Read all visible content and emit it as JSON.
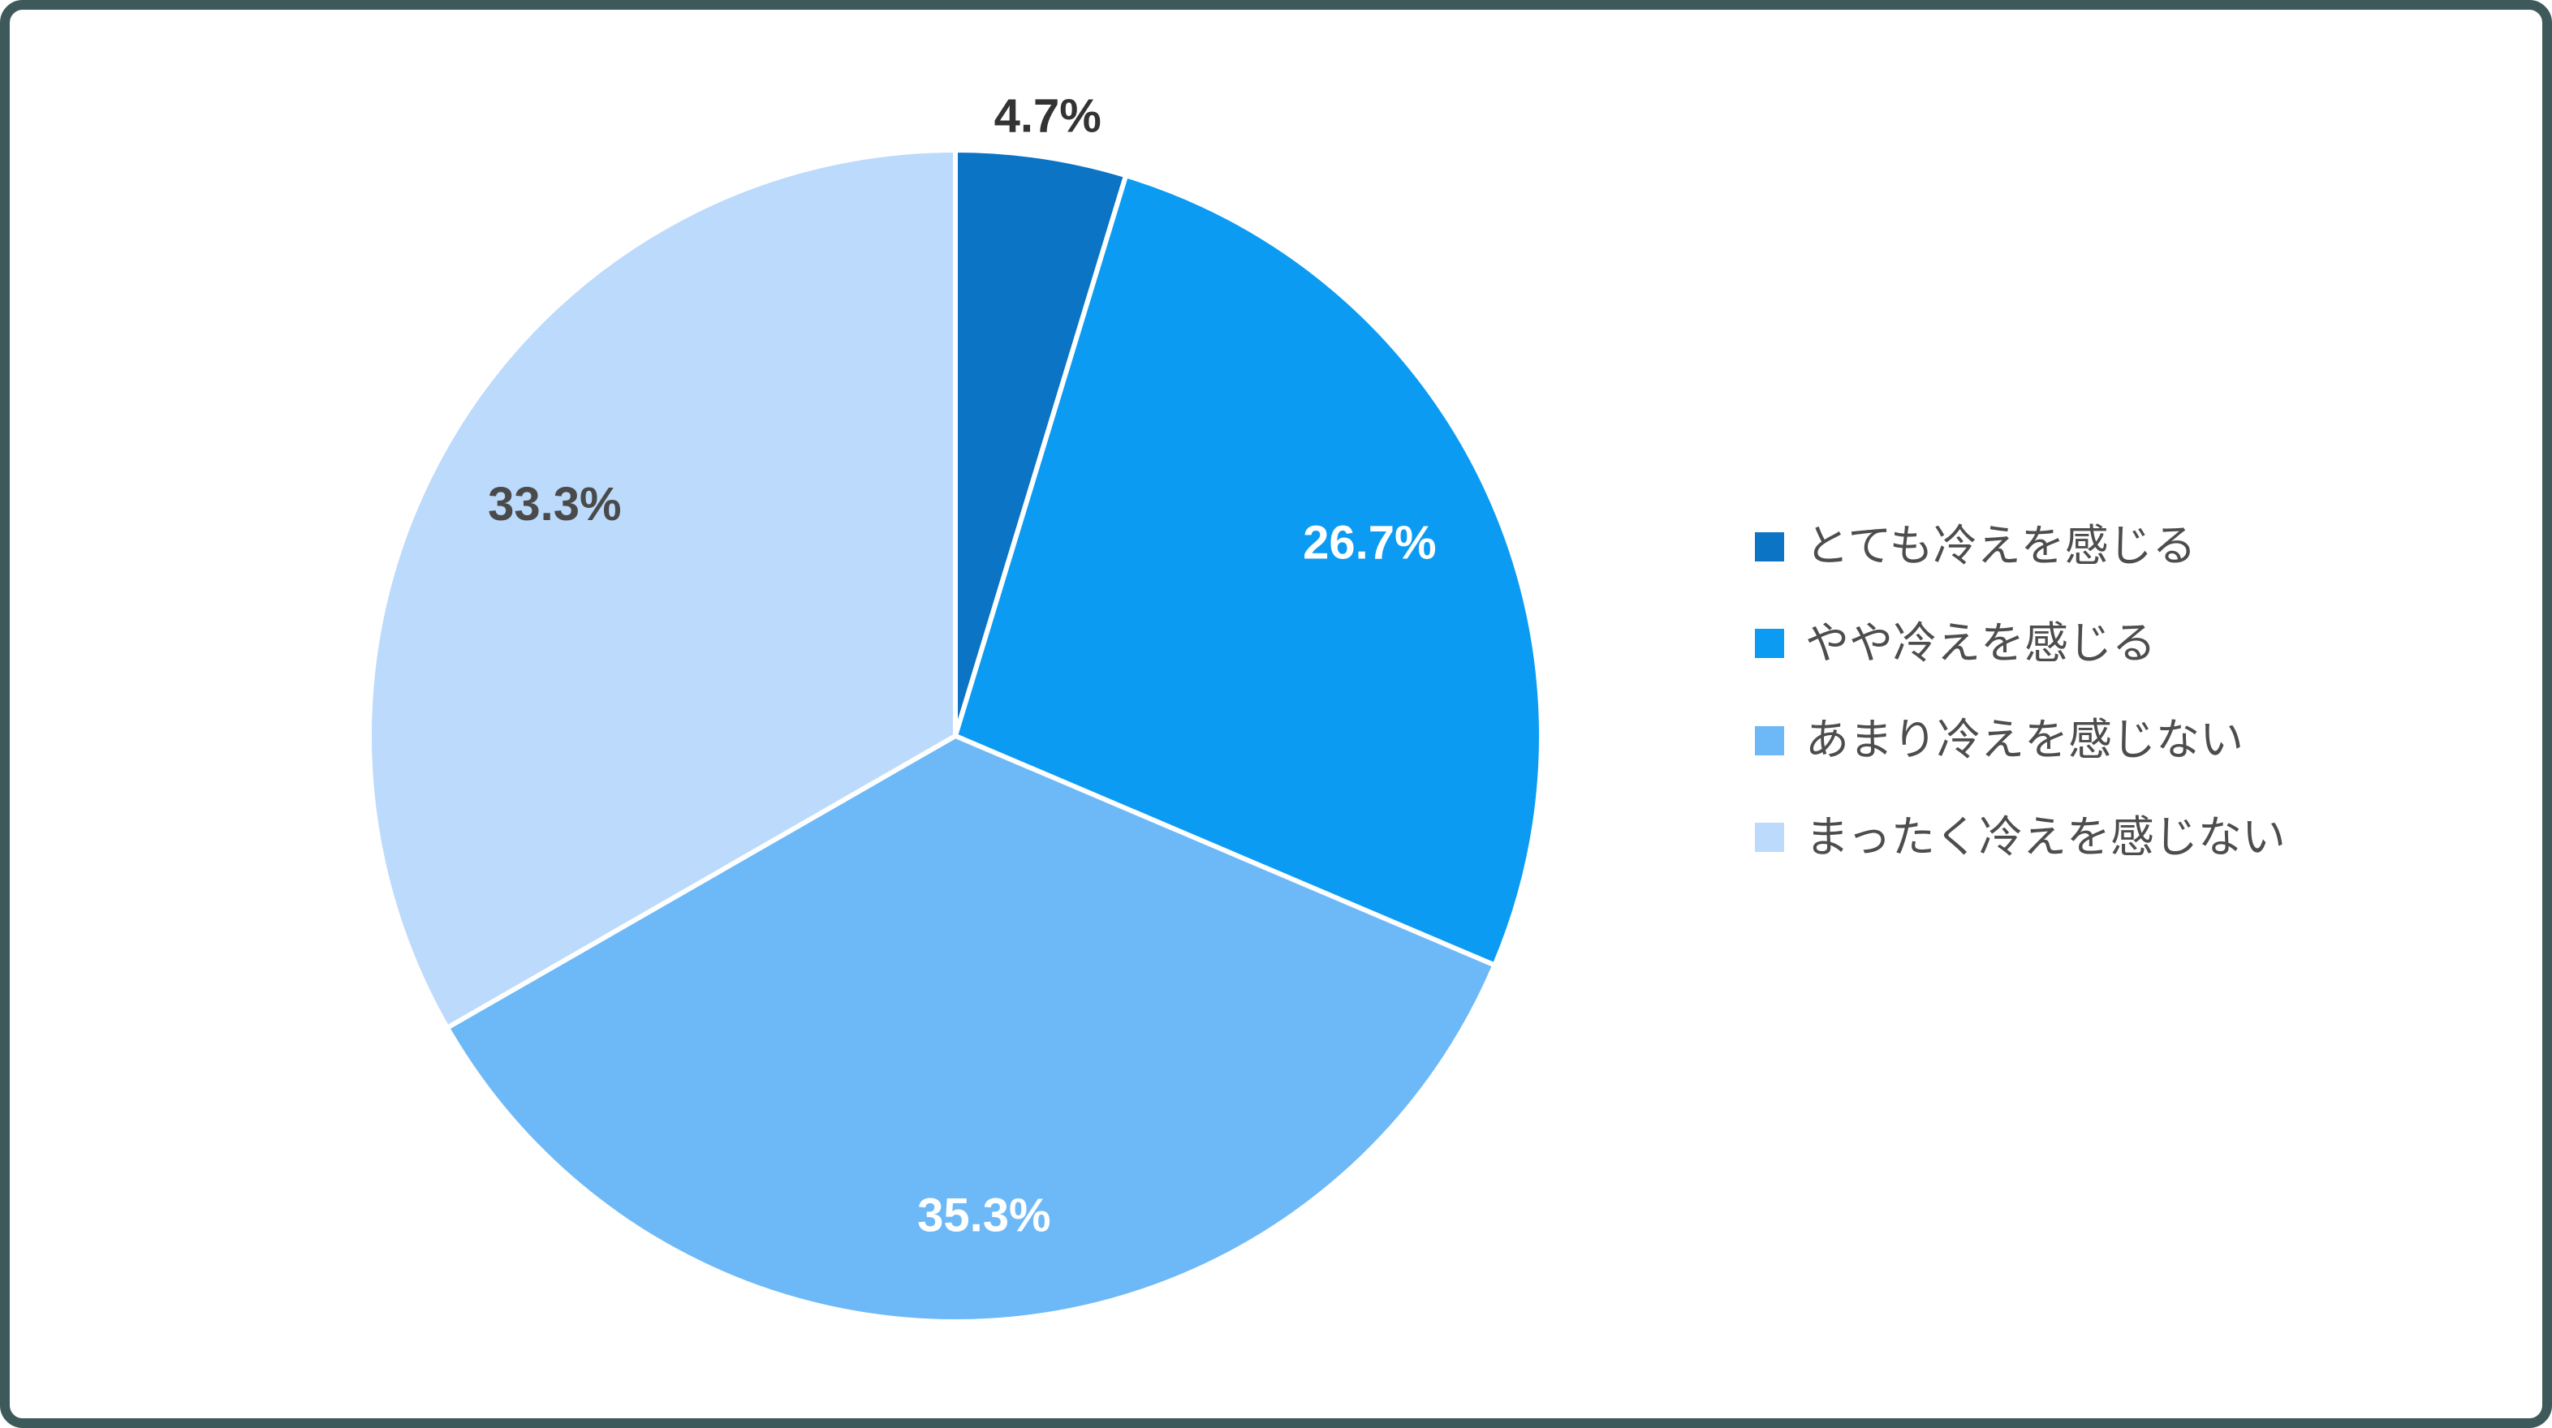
{
  "chart_data": {
    "type": "pie",
    "title": "",
    "start_angle_deg": -90,
    "direction": "clockwise",
    "legend_position": "right",
    "slices": [
      {
        "label": "とても冷えを感じる",
        "value": 4.7,
        "display": "4.7%",
        "color": "#0b74c4",
        "label_color": "#333333",
        "label_factor": 1.07
      },
      {
        "label": "やや冷えを感じる",
        "value": 26.7,
        "display": "26.7%",
        "color": "#0c9bf2",
        "label_color": "#ffffff",
        "label_factor": 0.78
      },
      {
        "label": "あまり冷えを感じない",
        "value": 35.3,
        "display": "35.3%",
        "color": "#6db9f8",
        "label_color": "#ffffff",
        "label_factor": 0.82
      },
      {
        "label": "まったく冷えを感じない",
        "value": 33.3,
        "display": "33.3%",
        "color": "#bcdafb",
        "label_color": "#4a4a4a",
        "label_factor": 0.79
      }
    ]
  },
  "colors": {
    "background": "#ffffff",
    "frame_border": "#3d5959",
    "legend_text": "#4d4d4d",
    "slice_separator": "#ffffff"
  }
}
